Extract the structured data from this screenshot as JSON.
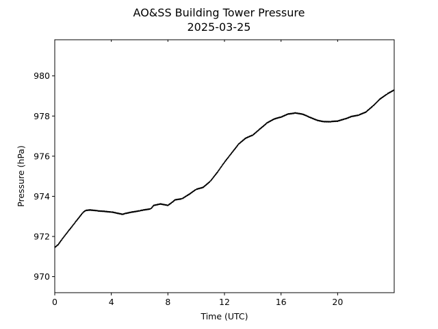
{
  "chart_data": {
    "type": "line",
    "title": "AO&SS Building Tower Pressure",
    "subtitle": "2025-03-25",
    "xlabel": "Time (UTC)",
    "ylabel": "Pressure (hPa)",
    "xlim": [
      0,
      24
    ],
    "ylim": [
      969.2,
      981.8
    ],
    "xticks": [
      0,
      4,
      8,
      12,
      16,
      20
    ],
    "yticks": [
      970,
      972,
      974,
      976,
      978,
      980
    ],
    "grid": false,
    "line_color": "#000000",
    "series": [
      {
        "x": [
          0,
          0.25,
          0.5,
          1,
          1.5,
          2,
          2.2,
          2.5,
          3,
          3.5,
          4,
          4.5,
          4.8,
          5,
          5.5,
          6,
          6.3,
          6.8,
          7,
          7.5,
          8,
          8.3,
          8.5,
          9,
          9.5,
          10,
          10.5,
          11,
          11.5,
          12,
          12.5,
          13,
          13.5,
          14,
          14.5,
          15,
          15.5,
          16,
          16.5,
          17,
          17.5,
          18,
          18.5,
          19,
          19.5,
          20,
          20.5,
          21,
          21.5,
          22,
          22.5,
          23,
          23.5,
          24
        ],
        "y": [
          971.45,
          971.6,
          971.85,
          972.3,
          972.75,
          973.2,
          973.3,
          973.32,
          973.28,
          973.25,
          973.22,
          973.15,
          973.1,
          973.15,
          973.22,
          973.28,
          973.32,
          973.38,
          973.55,
          973.62,
          973.55,
          973.7,
          973.82,
          973.88,
          974.1,
          974.35,
          974.45,
          974.75,
          975.2,
          975.7,
          976.15,
          976.6,
          976.9,
          977.05,
          977.35,
          977.65,
          977.85,
          977.95,
          978.1,
          978.15,
          978.1,
          977.95,
          977.8,
          977.72,
          977.72,
          977.75,
          977.85,
          977.98,
          978.05,
          978.2,
          978.5,
          978.85,
          979.1,
          979.3
        ]
      }
    ]
  }
}
